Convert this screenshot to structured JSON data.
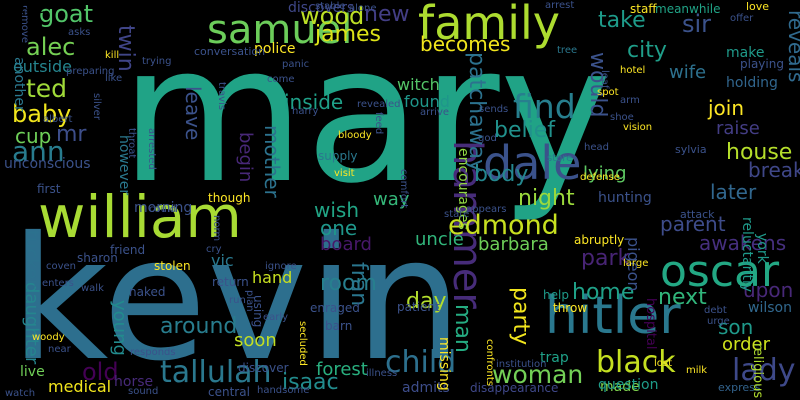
{
  "words": [
    {
      "text": "mary",
      "color": "#20a386"
    },
    {
      "text": "kevin",
      "color": "#2d6f8e"
    },
    {
      "text": "william",
      "color": "#a8db34"
    },
    {
      "text": "hitler",
      "color": "#2a788e"
    },
    {
      "text": "samuel",
      "color": "#6ccd5a"
    },
    {
      "text": "family",
      "color": "#addc30"
    },
    {
      "text": "dale",
      "color": "#3b528b"
    },
    {
      "text": "oscar",
      "color": "#23a884"
    },
    {
      "text": "hammer",
      "color": "#472c7a"
    },
    {
      "text": "tallulah",
      "color": "#2a788e"
    },
    {
      "text": "child",
      "color": "#2d708e"
    },
    {
      "text": "find",
      "color": "#277f8e"
    },
    {
      "text": "edmond",
      "color": "#c8e020"
    },
    {
      "text": "ann",
      "color": "#287c8e"
    },
    {
      "text": "black",
      "color": "#c5e021"
    },
    {
      "text": "lady",
      "color": "#3e4989"
    },
    {
      "text": "woman",
      "color": "#73d056"
    },
    {
      "text": "goat",
      "color": "#52c569"
    },
    {
      "text": "wood",
      "color": "#bddf26"
    },
    {
      "text": "alec",
      "color": "#75d054"
    },
    {
      "text": "ted",
      "color": "#a0da39"
    },
    {
      "text": "baby",
      "color": "#f1e51d"
    },
    {
      "text": "mr",
      "color": "#3d4e8a"
    },
    {
      "text": "cup",
      "color": "#6ece58"
    },
    {
      "text": "twin",
      "color": "#404588"
    },
    {
      "text": "new",
      "color": "#433e85"
    },
    {
      "text": "take",
      "color": "#1e9b8a"
    },
    {
      "text": "sir",
      "color": "#3b528b"
    },
    {
      "text": "city",
      "color": "#1f9e89"
    },
    {
      "text": "james",
      "color": "#dde318"
    },
    {
      "text": "becomes",
      "color": "#f1e51d"
    },
    {
      "text": "reveals",
      "color": "#306a8e"
    },
    {
      "text": "would",
      "color": "#3b528b"
    },
    {
      "text": "patchaway",
      "color": "#2c728e"
    },
    {
      "text": "belief",
      "color": "#21918c"
    },
    {
      "text": "night",
      "color": "#9bd93c"
    },
    {
      "text": "parent",
      "color": "#3e4c8a"
    },
    {
      "text": "later",
      "color": "#31678e"
    },
    {
      "text": "break",
      "color": "#3f4788"
    },
    {
      "text": "house",
      "color": "#b5de2b"
    },
    {
      "text": "park",
      "color": "#482475"
    },
    {
      "text": "home",
      "color": "#1fa188"
    },
    {
      "text": "next",
      "color": "#31b57b"
    },
    {
      "text": "upon",
      "color": "#482878"
    },
    {
      "text": "son",
      "color": "#1f998a"
    },
    {
      "text": "order",
      "color": "#cde11d"
    },
    {
      "text": "room",
      "color": "#277f8e"
    },
    {
      "text": "day",
      "color": "#b2dd2d"
    },
    {
      "text": "around",
      "color": "#287d8e"
    },
    {
      "text": "isaac",
      "color": "#228c8d"
    },
    {
      "text": "fran",
      "color": "#2a768e"
    },
    {
      "text": "man",
      "color": "#25ac82"
    },
    {
      "text": "party",
      "color": "#f1e51d"
    },
    {
      "text": "old",
      "color": "#440154"
    },
    {
      "text": "young",
      "color": "#228b8d"
    },
    {
      "text": "soon",
      "color": "#c2df23"
    },
    {
      "text": "mother",
      "color": "#2c728e"
    },
    {
      "text": "leave",
      "color": "#3b528b"
    },
    {
      "text": "begin",
      "color": "#482878"
    },
    {
      "text": "uncle",
      "color": "#31b57b"
    },
    {
      "text": "barbara",
      "color": "#6ece58"
    },
    {
      "text": "board",
      "color": "#48186a"
    },
    {
      "text": "wish",
      "color": "#21a585"
    },
    {
      "text": "one",
      "color": "#1f978b"
    },
    {
      "text": "way",
      "color": "#35b779"
    },
    {
      "text": "inside",
      "color": "#1fa088"
    },
    {
      "text": "join",
      "color": "#fde725"
    },
    {
      "text": "raise",
      "color": "#433d84"
    },
    {
      "text": "awakens",
      "color": "#462f7e"
    },
    {
      "text": "forest",
      "color": "#29af7f"
    },
    {
      "text": "daughter",
      "color": "#25858e"
    },
    {
      "text": "tucker",
      "color": "#2c718e"
    },
    {
      "text": "medical",
      "color": "#f1e51d"
    },
    {
      "text": "live",
      "color": "#70cf57"
    },
    {
      "text": "horse",
      "color": "#472a7a"
    },
    {
      "text": "admits",
      "color": "#3d4d8a"
    },
    {
      "text": "made",
      "color": "#7fd34e"
    },
    {
      "text": "question",
      "color": "#1e9c89"
    },
    {
      "text": "express",
      "color": "#33638d"
    },
    {
      "text": "disappearance",
      "color": "#3f4889"
    },
    {
      "text": "body",
      "color": "#24878e"
    },
    {
      "text": "lying",
      "color": "#5ec962"
    },
    {
      "text": "encourages",
      "color": "#90d743"
    },
    {
      "text": "found",
      "color": "#1f968b"
    },
    {
      "text": "witch",
      "color": "#54c568"
    },
    {
      "text": "wife",
      "color": "#2d718e"
    },
    {
      "text": "make",
      "color": "#1f9a8a"
    },
    {
      "text": "holding",
      "color": "#31668e"
    },
    {
      "text": "playing",
      "color": "#3b528b"
    },
    {
      "text": "staff",
      "color": "#fde725"
    },
    {
      "text": "meanwhile",
      "color": "#20a386"
    },
    {
      "text": "offer",
      "color": "#3b528b"
    },
    {
      "text": "love",
      "color": "#fde725"
    },
    {
      "text": "discovers",
      "color": "#3f4788"
    },
    {
      "text": "alone",
      "color": "#3b528b"
    },
    {
      "text": "stable",
      "color": "#3b528b"
    },
    {
      "text": "arrest",
      "color": "#3b528b"
    },
    {
      "text": "help",
      "color": "#1e9b8a"
    },
    {
      "text": "throw",
      "color": "#fde725"
    },
    {
      "text": "hospital",
      "color": "#440154"
    },
    {
      "text": "wilson",
      "color": "#31688e"
    },
    {
      "text": "religious",
      "color": "#b0dd2f"
    },
    {
      "text": "trap",
      "color": "#1fa188"
    },
    {
      "text": "pigeon",
      "color": "#3b528b"
    },
    {
      "text": "reluctantly",
      "color": "#1f9a8a"
    },
    {
      "text": "york",
      "color": "#1f9a8a"
    },
    {
      "text": "hunting",
      "color": "#3b528b"
    },
    {
      "text": "sylvia",
      "color": "#3b528b"
    },
    {
      "text": "attack",
      "color": "#3b528b"
    },
    {
      "text": "police",
      "color": "#fde725"
    },
    {
      "text": "conversation",
      "color": "#3b528b"
    },
    {
      "text": "outside",
      "color": "#25848e"
    },
    {
      "text": "another",
      "color": "#2a788e"
    },
    {
      "text": "unconscious",
      "color": "#3b528b"
    },
    {
      "text": "however",
      "color": "#2a788e"
    },
    {
      "text": "morning",
      "color": "#3b528b"
    },
    {
      "text": "hand",
      "color": "#c8e020"
    },
    {
      "text": "return",
      "color": "#3b528b"
    },
    {
      "text": "stolen",
      "color": "#fde725"
    },
    {
      "text": "friend",
      "color": "#3b528b"
    },
    {
      "text": "sharon",
      "color": "#3b528b"
    },
    {
      "text": "naked",
      "color": "#3b528b"
    },
    {
      "text": "coven",
      "color": "#3b528b"
    },
    {
      "text": "enters",
      "color": "#3b528b"
    },
    {
      "text": "walk",
      "color": "#3b528b"
    },
    {
      "text": "using",
      "color": "#3b528b"
    },
    {
      "text": "vic",
      "color": "#2a788e"
    },
    {
      "text": "supply",
      "color": "#2a788e"
    },
    {
      "text": "visit",
      "color": "#fde725"
    },
    {
      "text": "bloody",
      "color": "#fde725"
    },
    {
      "text": "arrive",
      "color": "#3b528b"
    },
    {
      "text": "revealed",
      "color": "#3b528b"
    },
    {
      "text": "god",
      "color": "#3b528b"
    },
    {
      "text": "store",
      "color": "#2a788e"
    },
    {
      "text": "defense",
      "color": "#fde725"
    },
    {
      "text": "head",
      "color": "#3b528b"
    },
    {
      "text": "arm",
      "color": "#3b528b"
    },
    {
      "text": "vision",
      "color": "#fde725"
    },
    {
      "text": "shoe",
      "color": "#3b528b"
    },
    {
      "text": "spot",
      "color": "#fde725"
    },
    {
      "text": "hotel",
      "color": "#fde725"
    },
    {
      "text": "leaf",
      "color": "#3b528b"
    },
    {
      "text": "tree",
      "color": "#2a788e"
    },
    {
      "text": "like",
      "color": "#3b528b"
    },
    {
      "text": "kill",
      "color": "#fde725"
    },
    {
      "text": "asks",
      "color": "#3b528b"
    },
    {
      "text": "trying",
      "color": "#3b528b"
    },
    {
      "text": "panic",
      "color": "#3b528b"
    },
    {
      "text": "come",
      "color": "#3b528b"
    },
    {
      "text": "sends",
      "color": "#3b528b"
    },
    {
      "text": "travis",
      "color": "#3b528b"
    },
    {
      "text": "harry",
      "color": "#3b528b"
    },
    {
      "text": "feed",
      "color": "#3b528b"
    },
    {
      "text": "arrested",
      "color": "#3b528b"
    },
    {
      "text": "throat",
      "color": "#3b528b"
    },
    {
      "text": "albert",
      "color": "#3b528b"
    },
    {
      "text": "silver",
      "color": "#3b528b"
    },
    {
      "text": "preparing",
      "color": "#3b528b"
    },
    {
      "text": "remove",
      "color": "#3b528b"
    },
    {
      "text": "first",
      "color": "#3b528b"
    },
    {
      "text": "though",
      "color": "#fde725"
    },
    {
      "text": "could",
      "color": "#3b528b"
    },
    {
      "text": "norm",
      "color": "#3b528b"
    },
    {
      "text": "cry",
      "color": "#3b528b"
    },
    {
      "text": "ignore",
      "color": "#3b528b"
    },
    {
      "text": "enraged",
      "color": "#3b528b"
    },
    {
      "text": "barn",
      "color": "#3b528b"
    },
    {
      "text": "patient",
      "color": "#3b528b"
    },
    {
      "text": "comfort",
      "color": "#3b528b"
    },
    {
      "text": "state",
      "color": "#3b528b"
    },
    {
      "text": "appears",
      "color": "#3b528b"
    },
    {
      "text": "missing",
      "color": "#fde725"
    },
    {
      "text": "abruptly",
      "color": "#fde725"
    },
    {
      "text": "large",
      "color": "#fde725"
    },
    {
      "text": "confronts",
      "color": "#fde725"
    },
    {
      "text": "institution",
      "color": "#3b528b"
    },
    {
      "text": "lost",
      "color": "#fde725"
    },
    {
      "text": "milk",
      "color": "#fde725"
    },
    {
      "text": "urge",
      "color": "#3b528b"
    },
    {
      "text": "debt",
      "color": "#3b528b"
    },
    {
      "text": "discover",
      "color": "#3b528b"
    },
    {
      "text": "secluded",
      "color": "#fde725"
    },
    {
      "text": "responds",
      "color": "#3b528b"
    },
    {
      "text": "woody",
      "color": "#fde725"
    },
    {
      "text": "near",
      "color": "#3b528b"
    },
    {
      "text": "watch",
      "color": "#3b528b"
    },
    {
      "text": "sound",
      "color": "#3b528b"
    },
    {
      "text": "central",
      "color": "#3b528b"
    },
    {
      "text": "handsome",
      "color": "#3b528b"
    },
    {
      "text": "illness",
      "color": "#3b528b"
    },
    {
      "text": "run",
      "color": "#3b528b"
    },
    {
      "text": "early",
      "color": "#3b528b"
    },
    {
      "text": "plan",
      "color": "#3b528b"
    },
    {
      "text": "name",
      "color": "#3b528b"
    }
  ]
}
